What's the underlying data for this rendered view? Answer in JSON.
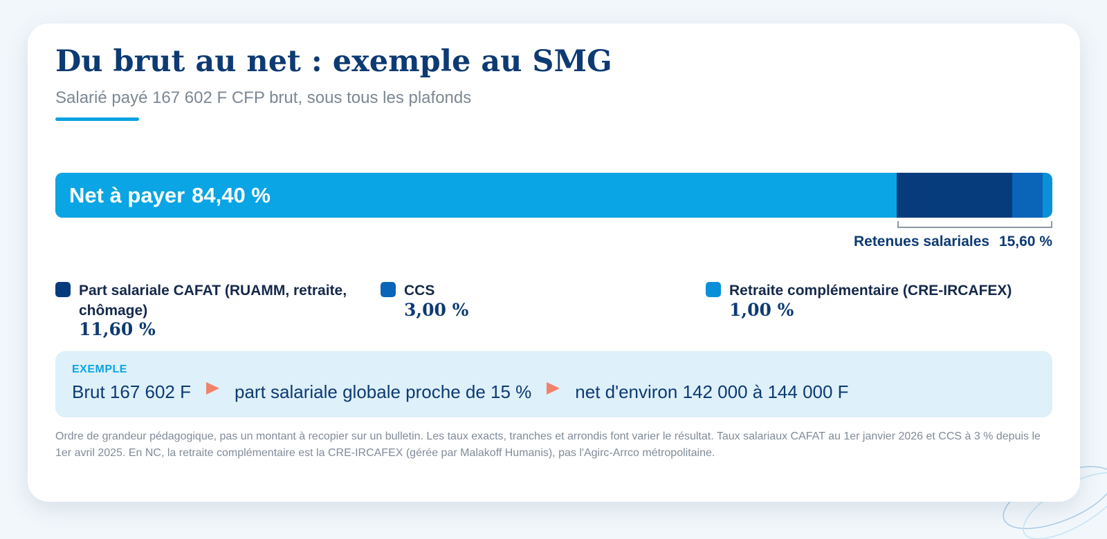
{
  "title": "Du brut au net : exemple au SMG",
  "subtitle": "Salarié payé 167 602 F CFP brut, sous tous les plafonds",
  "colors": {
    "net": "#0aa5e4",
    "cafat": "#073c7c",
    "ccs": "#0a64b8",
    "cre": "#0a90d8",
    "accent_arrow": "#f0826a",
    "title": "#0d3a73"
  },
  "chart_data": {
    "type": "bar",
    "stacked": true,
    "orientation": "horizontal",
    "total": 100,
    "series": [
      {
        "name": "Net à payer",
        "value": 84.4
      },
      {
        "name": "Part salariale CAFAT (RUAMM, retraite, chômage)",
        "value": 11.6
      },
      {
        "name": "CCS",
        "value": 3.0
      },
      {
        "name": "Retraite complémentaire (CRE-IRCAFEX)",
        "value": 1.0
      }
    ],
    "net_label": "Net à payer",
    "net_pct": "84,40 %",
    "retenues_label": "Retenues salariales",
    "retenues_pct": "15,60 %",
    "legend": [
      {
        "label": "Part salariale CAFAT (RUAMM, retraite, chômage)",
        "value_text": "11,60 %"
      },
      {
        "label": "CCS",
        "value_text": "3,00 %"
      },
      {
        "label": "Retraite complémentaire (CRE-IRCAFEX)",
        "value_text": "1,00 %"
      }
    ]
  },
  "example": {
    "tag": "EXEMPLE",
    "step1": "Brut 167 602 F",
    "step2": "part salariale globale proche de 15 %",
    "step3": "net d'environ 142 000 à 144 000 F"
  },
  "footnote": "Ordre de grandeur pédagogique, pas un montant à recopier sur un bulletin. Les taux exacts, tranches et arrondis font varier le résultat. Taux salariaux CAFAT au 1er janvier 2026 et CCS à 3 % depuis le 1er avril 2025. En NC, la retraite complémentaire est la CRE-IRCAFEX (gérée par Malakoff Humanis), pas l'Agirc-Arrco métropolitaine."
}
